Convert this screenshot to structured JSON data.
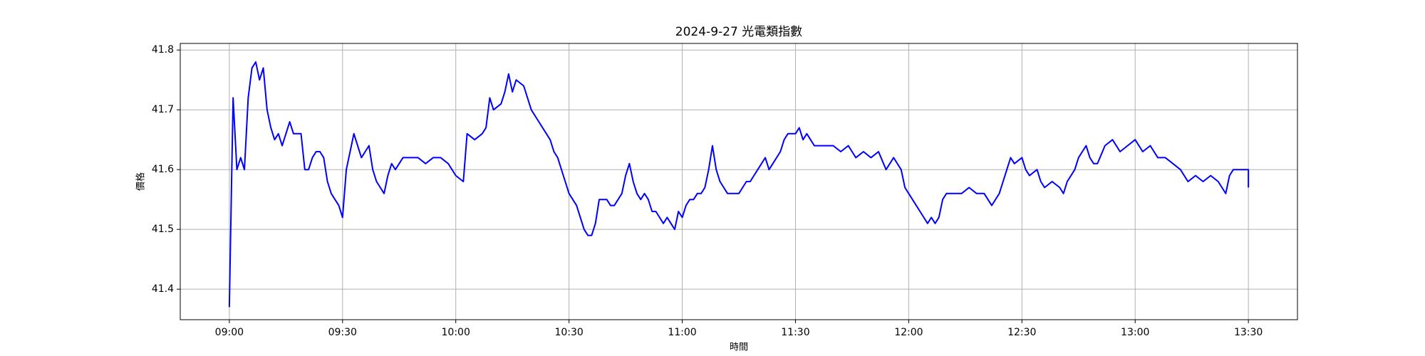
{
  "chart_data": {
    "type": "line",
    "title": "2024-9-27 光電類指數",
    "x_label": "時間",
    "y_label": "價格",
    "x": [
      "09:00",
      "09:01",
      "09:02",
      "09:03",
      "09:04",
      "09:05",
      "09:06",
      "09:07",
      "09:08",
      "09:09",
      "09:10",
      "09:11",
      "09:12",
      "09:13",
      "09:14",
      "09:15",
      "09:16",
      "09:17",
      "09:18",
      "09:19",
      "09:20",
      "09:21",
      "09:22",
      "09:23",
      "09:24",
      "09:25",
      "09:26",
      "09:27",
      "09:28",
      "09:29",
      "09:30",
      "09:31",
      "09:32",
      "09:33",
      "09:34",
      "09:35",
      "09:36",
      "09:37",
      "09:38",
      "09:39",
      "09:40",
      "09:41",
      "09:42",
      "09:43",
      "09:44",
      "09:45",
      "09:46",
      "09:50",
      "09:52",
      "09:54",
      "09:56",
      "09:58",
      "10:00",
      "10:02",
      "10:03",
      "10:05",
      "10:07",
      "10:08",
      "10:09",
      "10:10",
      "10:12",
      "10:13",
      "10:14",
      "10:15",
      "10:16",
      "10:18",
      "10:19",
      "10:20",
      "10:22",
      "10:23",
      "10:25",
      "10:26",
      "10:27",
      "10:28",
      "10:29",
      "10:30",
      "10:31",
      "10:32",
      "10:33",
      "10:34",
      "10:35",
      "10:36",
      "10:37",
      "10:38",
      "10:39",
      "10:40",
      "10:41",
      "10:42",
      "10:43",
      "10:44",
      "10:45",
      "10:46",
      "10:47",
      "10:48",
      "10:49",
      "10:50",
      "10:51",
      "10:52",
      "10:53",
      "10:54",
      "10:55",
      "10:56",
      "10:57",
      "10:58",
      "10:59",
      "11:00",
      "11:01",
      "11:02",
      "11:03",
      "11:04",
      "11:05",
      "11:06",
      "11:07",
      "11:08",
      "11:09",
      "11:10",
      "11:11",
      "11:12",
      "11:13",
      "11:14",
      "11:15",
      "11:16",
      "11:17",
      "11:18",
      "11:19",
      "11:20",
      "11:21",
      "11:22",
      "11:23",
      "11:24",
      "11:26",
      "11:27",
      "11:28",
      "11:30",
      "11:31",
      "11:32",
      "11:33",
      "11:34",
      "11:35",
      "11:36",
      "11:38",
      "11:40",
      "11:42",
      "11:44",
      "11:46",
      "11:48",
      "11:50",
      "11:52",
      "11:54",
      "11:56",
      "11:58",
      "11:59",
      "12:00",
      "12:01",
      "12:02",
      "12:03",
      "12:04",
      "12:05",
      "12:06",
      "12:07",
      "12:08",
      "12:09",
      "12:10",
      "12:12",
      "12:14",
      "12:16",
      "12:18",
      "12:20",
      "12:22",
      "12:24",
      "12:25",
      "12:26",
      "12:27",
      "12:28",
      "12:30",
      "12:31",
      "12:32",
      "12:34",
      "12:35",
      "12:36",
      "12:38",
      "12:40",
      "12:41",
      "12:42",
      "12:44",
      "12:45",
      "12:46",
      "12:47",
      "12:48",
      "12:49",
      "12:50",
      "12:52",
      "12:54",
      "12:56",
      "12:58",
      "13:00",
      "13:02",
      "13:04",
      "13:06",
      "13:08",
      "13:10",
      "13:12",
      "13:14",
      "13:16",
      "13:18",
      "13:20",
      "13:22",
      "13:23",
      "13:24",
      "13:25",
      "13:26",
      "13:27",
      "13:28",
      "13:29",
      "13:30",
      "13:30"
    ],
    "series": [
      {
        "name": "價格",
        "color": "#0000ff",
        "values": [
          41.37,
          41.72,
          41.6,
          41.62,
          41.6,
          41.72,
          41.77,
          41.78,
          41.75,
          41.77,
          41.7,
          41.67,
          41.65,
          41.66,
          41.64,
          41.66,
          41.68,
          41.66,
          41.66,
          41.66,
          41.6,
          41.6,
          41.62,
          41.63,
          41.63,
          41.62,
          41.58,
          41.56,
          41.55,
          41.54,
          41.52,
          41.6,
          41.63,
          41.66,
          41.64,
          41.62,
          41.63,
          41.64,
          41.6,
          41.58,
          41.57,
          41.56,
          41.59,
          41.61,
          41.6,
          41.61,
          41.62,
          41.62,
          41.61,
          41.62,
          41.62,
          41.61,
          41.59,
          41.58,
          41.66,
          41.65,
          41.66,
          41.67,
          41.72,
          41.7,
          41.71,
          41.73,
          41.76,
          41.73,
          41.75,
          41.74,
          41.72,
          41.7,
          41.68,
          41.67,
          41.65,
          41.63,
          41.62,
          41.6,
          41.58,
          41.56,
          41.55,
          41.54,
          41.52,
          41.5,
          41.49,
          41.49,
          41.51,
          41.55,
          41.55,
          41.55,
          41.54,
          41.54,
          41.55,
          41.56,
          41.59,
          41.61,
          41.58,
          41.56,
          41.55,
          41.56,
          41.55,
          41.53,
          41.53,
          41.52,
          41.51,
          41.52,
          41.51,
          41.5,
          41.53,
          41.52,
          41.54,
          41.55,
          41.55,
          41.56,
          41.56,
          41.57,
          41.6,
          41.64,
          41.6,
          41.58,
          41.57,
          41.56,
          41.56,
          41.56,
          41.56,
          41.57,
          41.58,
          41.58,
          41.59,
          41.6,
          41.61,
          41.62,
          41.6,
          41.61,
          41.63,
          41.65,
          41.66,
          41.66,
          41.67,
          41.65,
          41.66,
          41.65,
          41.64,
          41.64,
          41.64,
          41.64,
          41.63,
          41.64,
          41.62,
          41.63,
          41.62,
          41.63,
          41.6,
          41.62,
          41.6,
          41.57,
          41.56,
          41.55,
          41.54,
          41.53,
          41.52,
          41.51,
          41.52,
          41.51,
          41.52,
          41.55,
          41.56,
          41.56,
          41.56,
          41.57,
          41.56,
          41.56,
          41.54,
          41.56,
          41.58,
          41.6,
          41.62,
          41.61,
          41.62,
          41.6,
          41.59,
          41.6,
          41.58,
          41.57,
          41.58,
          41.57,
          41.56,
          41.58,
          41.6,
          41.62,
          41.63,
          41.64,
          41.62,
          41.61,
          41.61,
          41.64,
          41.65,
          41.63,
          41.64,
          41.65,
          41.63,
          41.64,
          41.62,
          41.62,
          41.61,
          41.6,
          41.58,
          41.59,
          41.58,
          41.59,
          41.58,
          41.57,
          41.56,
          41.59,
          41.6,
          41.6,
          41.6,
          41.6,
          41.6,
          41.57
        ]
      }
    ],
    "xlim": [
      "08:47",
      "13:43"
    ],
    "xticks": [
      "09:00",
      "09:30",
      "10:00",
      "10:30",
      "11:00",
      "11:30",
      "12:00",
      "12:30",
      "13:00",
      "13:30"
    ],
    "ylim": [
      41.349,
      41.811
    ],
    "yticks": [
      41.4,
      41.5,
      41.6,
      41.7,
      41.8
    ],
    "grid": true
  }
}
